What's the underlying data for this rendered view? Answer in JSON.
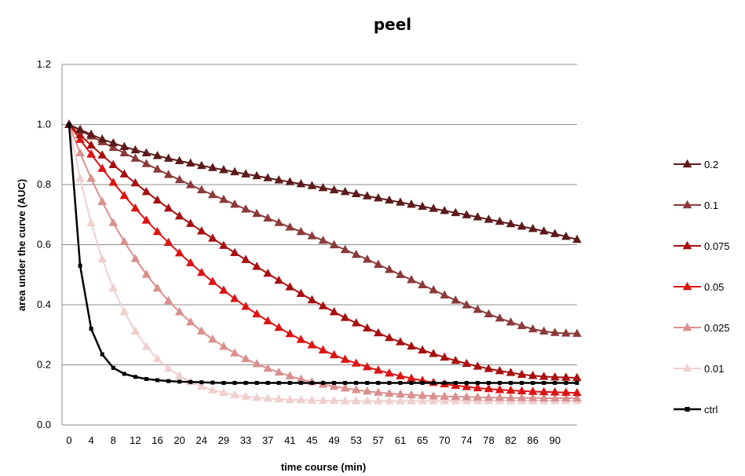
{
  "chart_data": {
    "type": "line",
    "title": "peel",
    "xlabel": "time course (min)",
    "ylabel": "area under the curve (AUC)",
    "ylim": [
      0,
      1.2
    ],
    "yticks": [
      "0.0",
      "0.2",
      "0.4",
      "0.6",
      "0.8",
      "1.0",
      "1.2"
    ],
    "xticks": [
      "0",
      "4",
      "8",
      "12",
      "16",
      "20",
      "24",
      "29",
      "33",
      "37",
      "41",
      "45",
      "49",
      "53",
      "57",
      "61",
      "65",
      "70",
      "74",
      "78",
      "82",
      "86",
      "90"
    ],
    "grid": true,
    "legend": "right",
    "series": [
      {
        "name": "0.2",
        "color": "#5c1a1a",
        "marker": "triangle",
        "values": [
          1.0,
          0.983,
          0.967,
          0.951,
          0.938,
          0.926,
          0.915,
          0.905,
          0.896,
          0.887,
          0.879,
          0.871,
          0.863,
          0.856,
          0.849,
          0.842,
          0.835,
          0.829,
          0.822,
          0.815,
          0.809,
          0.802,
          0.796,
          0.789,
          0.782,
          0.776,
          0.769,
          0.762,
          0.755,
          0.748,
          0.741,
          0.734,
          0.727,
          0.72,
          0.713,
          0.706,
          0.699,
          0.692,
          0.684,
          0.677,
          0.669,
          0.661,
          0.653,
          0.645,
          0.636,
          0.627,
          0.617
        ]
      },
      {
        "name": "0.1",
        "color": "#8b3a3a",
        "marker": "triangle",
        "values": [
          1.0,
          0.98,
          0.961,
          0.942,
          0.923,
          0.905,
          0.887,
          0.869,
          0.851,
          0.833,
          0.816,
          0.799,
          0.782,
          0.766,
          0.75,
          0.734,
          0.718,
          0.703,
          0.688,
          0.673,
          0.658,
          0.643,
          0.629,
          0.614,
          0.599,
          0.583,
          0.567,
          0.551,
          0.534,
          0.517,
          0.5,
          0.483,
          0.466,
          0.449,
          0.432,
          0.415,
          0.399,
          0.384,
          0.369,
          0.355,
          0.342,
          0.33,
          0.319,
          0.312,
          0.307,
          0.305,
          0.304
        ]
      },
      {
        "name": "0.075",
        "color": "#a80f0f",
        "marker": "triangle",
        "values": [
          1.0,
          0.965,
          0.931,
          0.898,
          0.866,
          0.835,
          0.805,
          0.776,
          0.748,
          0.721,
          0.695,
          0.67,
          0.645,
          0.621,
          0.597,
          0.573,
          0.55,
          0.527,
          0.504,
          0.481,
          0.459,
          0.437,
          0.416,
          0.396,
          0.376,
          0.357,
          0.339,
          0.322,
          0.306,
          0.29,
          0.276,
          0.262,
          0.249,
          0.237,
          0.225,
          0.214,
          0.204,
          0.195,
          0.187,
          0.18,
          0.174,
          0.168,
          0.164,
          0.161,
          0.159,
          0.158,
          0.157
        ]
      },
      {
        "name": "0.05",
        "color": "#dc1414",
        "marker": "triangle",
        "values": [
          1.0,
          0.95,
          0.901,
          0.853,
          0.807,
          0.763,
          0.721,
          0.681,
          0.643,
          0.607,
          0.572,
          0.539,
          0.507,
          0.477,
          0.448,
          0.42,
          0.394,
          0.369,
          0.346,
          0.324,
          0.303,
          0.284,
          0.266,
          0.249,
          0.233,
          0.218,
          0.205,
          0.193,
          0.182,
          0.172,
          0.163,
          0.155,
          0.148,
          0.141,
          0.136,
          0.131,
          0.127,
          0.123,
          0.12,
          0.117,
          0.115,
          0.113,
          0.111,
          0.11,
          0.109,
          0.108,
          0.107
        ]
      },
      {
        "name": "0.025",
        "color": "#d9908e",
        "marker": "triangle",
        "values": [
          1.0,
          0.905,
          0.82,
          0.743,
          0.673,
          0.61,
          0.553,
          0.501,
          0.455,
          0.413,
          0.376,
          0.342,
          0.312,
          0.285,
          0.261,
          0.239,
          0.22,
          0.203,
          0.188,
          0.175,
          0.163,
          0.152,
          0.143,
          0.135,
          0.128,
          0.122,
          0.117,
          0.112,
          0.108,
          0.105,
          0.102,
          0.1,
          0.098,
          0.096,
          0.095,
          0.094,
          0.093,
          0.092,
          0.091,
          0.091,
          0.09,
          0.09,
          0.09,
          0.089,
          0.089,
          0.089,
          0.089
        ]
      },
      {
        "name": "0.01",
        "color": "#f0cfcf",
        "marker": "triangle",
        "values": [
          1.0,
          0.82,
          0.672,
          0.552,
          0.455,
          0.376,
          0.312,
          0.261,
          0.22,
          0.188,
          0.163,
          0.143,
          0.128,
          0.116,
          0.107,
          0.1,
          0.095,
          0.091,
          0.088,
          0.086,
          0.084,
          0.083,
          0.082,
          0.081,
          0.081,
          0.08,
          0.08,
          0.08,
          0.08,
          0.08,
          0.08,
          0.08,
          0.08,
          0.08,
          0.08,
          0.08,
          0.08,
          0.08,
          0.08,
          0.08,
          0.08,
          0.08,
          0.08,
          0.08,
          0.08,
          0.08,
          0.08
        ]
      },
      {
        "name": "ctrl",
        "color": "#000000",
        "marker": "square",
        "values": [
          1.0,
          0.53,
          0.32,
          0.235,
          0.19,
          0.17,
          0.16,
          0.153,
          0.149,
          0.146,
          0.144,
          0.143,
          0.142,
          0.141,
          0.14,
          0.14,
          0.14,
          0.14,
          0.14,
          0.14,
          0.14,
          0.14,
          0.14,
          0.14,
          0.14,
          0.14,
          0.14,
          0.14,
          0.14,
          0.14,
          0.14,
          0.14,
          0.14,
          0.14,
          0.14,
          0.14,
          0.14,
          0.14,
          0.14,
          0.14,
          0.14,
          0.14,
          0.14,
          0.14,
          0.14,
          0.14,
          0.14
        ]
      }
    ]
  }
}
